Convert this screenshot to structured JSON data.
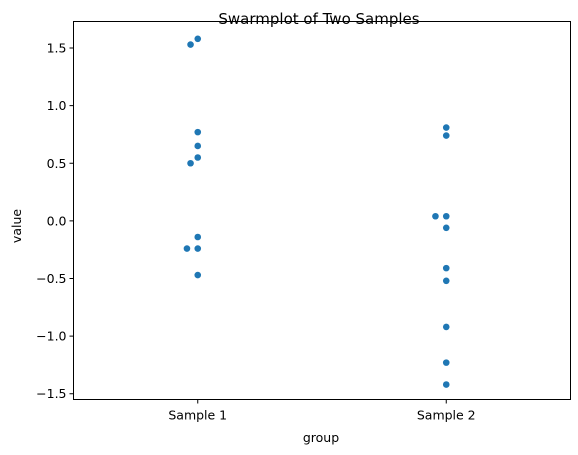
{
  "chart_data": {
    "type": "scatter",
    "subtype": "swarmplot",
    "title": "Swarmplot of Two Samples",
    "xlabel": "group",
    "ylabel": "value",
    "categories": [
      "Sample 1",
      "Sample 2"
    ],
    "ylim": [
      -1.55,
      1.73
    ],
    "yticks": [
      -1.5,
      -1.0,
      -0.5,
      0.0,
      0.5,
      1.0,
      1.5
    ],
    "ytick_labels": [
      "−1.5",
      "−1.0",
      "−0.5",
      "0.0",
      "0.5",
      "1.0",
      "1.5"
    ],
    "grid": false,
    "legend": "none",
    "marker_color": "#1f77b4",
    "series": [
      {
        "category": "Sample 1",
        "values": [
          1.58,
          1.53,
          0.77,
          0.65,
          0.55,
          0.5,
          -0.14,
          -0.24,
          -0.24,
          -0.47
        ]
      },
      {
        "category": "Sample 2",
        "values": [
          0.81,
          0.74,
          0.04,
          0.04,
          -0.06,
          -0.41,
          -0.52,
          -0.92,
          -1.23,
          -1.42
        ]
      }
    ]
  }
}
